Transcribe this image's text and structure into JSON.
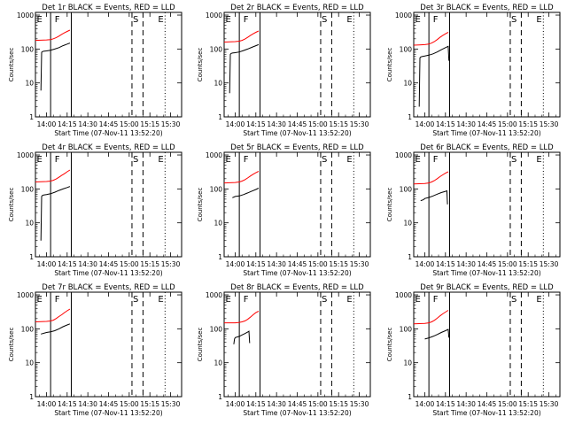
{
  "common": {
    "xlabel": "Start Time (07-Nov-11 13:52:20)",
    "ylabel": "Counts/sec",
    "x_ticks": [
      "14:00",
      "14:15",
      "14:30",
      "14:45",
      "15:00",
      "15:15",
      "15:30"
    ],
    "y_ticks": [
      "1",
      "10",
      "100",
      "1000"
    ],
    "markers": [
      "F",
      "S",
      "E"
    ]
  },
  "chart_data": [
    {
      "type": "line",
      "title": "Det 1r BLACK = Events, RED = LLD",
      "x_range_min": [
        -8,
        98
      ],
      "y_log": true,
      "ylim": [
        1,
        1200
      ],
      "marker_lines": {
        "solid_start": 3,
        "solid_end": 18,
        "dashed": [
          62,
          70
        ],
        "dotted": [
          86,
          98
        ]
      },
      "series": [
        {
          "color": "#ff0000",
          "x": [
            -8,
            -4,
            0,
            3,
            5,
            7,
            9,
            11,
            13,
            15,
            17
          ],
          "y": [
            180,
            182,
            185,
            190,
            200,
            215,
            240,
            270,
            300,
            330,
            360
          ]
        },
        {
          "color": "#000000",
          "x": [
            -4,
            -3.5,
            -3,
            -2,
            0,
            3,
            6,
            9,
            12,
            15,
            17
          ],
          "y": [
            6,
            80,
            84,
            86,
            88,
            92,
            100,
            110,
            125,
            140,
            150
          ]
        }
      ]
    },
    {
      "type": "line",
      "title": "Det 2r BLACK = Events, RED = LLD",
      "x_range_min": [
        -8,
        98
      ],
      "y_log": true,
      "ylim": [
        1,
        1200
      ],
      "marker_lines": {
        "solid_start": 3,
        "solid_end": 18,
        "dashed": [
          62,
          70
        ],
        "dotted": [
          86,
          98
        ]
      },
      "series": [
        {
          "color": "#ff0000",
          "x": [
            -8,
            -4,
            0,
            3,
            5,
            7,
            9,
            11,
            13,
            15,
            17
          ],
          "y": [
            160,
            162,
            165,
            170,
            180,
            195,
            220,
            250,
            280,
            310,
            340
          ]
        },
        {
          "color": "#000000",
          "x": [
            -4,
            -3.5,
            -3,
            -2,
            0,
            3,
            6,
            9,
            12,
            15,
            17
          ],
          "y": [
            5,
            70,
            74,
            76,
            78,
            82,
            90,
            100,
            112,
            125,
            135
          ]
        }
      ]
    },
    {
      "type": "line",
      "title": "Det 3r BLACK = Events, RED = LLD",
      "x_range_min": [
        -8,
        98
      ],
      "y_log": true,
      "ylim": [
        1,
        1200
      ],
      "marker_lines": {
        "solid_start": 3,
        "solid_end": 18,
        "dashed": [
          62,
          70
        ],
        "dotted": [
          86,
          98
        ]
      },
      "series": [
        {
          "color": "#ff0000",
          "x": [
            -8,
            -4,
            0,
            3,
            5,
            7,
            9,
            11,
            13,
            15,
            17
          ],
          "y": [
            130,
            132,
            135,
            140,
            150,
            165,
            190,
            220,
            250,
            280,
            310
          ]
        },
        {
          "color": "#000000",
          "x": [
            -4,
            -3.5,
            -3,
            -2,
            0,
            3,
            6,
            9,
            12,
            15,
            17,
            17.5
          ],
          "y": [
            2,
            55,
            58,
            60,
            62,
            66,
            72,
            82,
            95,
            110,
            120,
            45
          ]
        }
      ]
    },
    {
      "type": "line",
      "title": "Det 4r BLACK = Events, RED = LLD",
      "x_range_min": [
        -8,
        98
      ],
      "y_log": true,
      "ylim": [
        1,
        1200
      ],
      "marker_lines": {
        "solid_start": 3,
        "solid_end": 18,
        "dashed": [
          62,
          70
        ],
        "dotted": [
          86,
          98
        ]
      },
      "series": [
        {
          "color": "#ff0000",
          "x": [
            -8,
            -4,
            0,
            3,
            5,
            7,
            9,
            11,
            13,
            15,
            17
          ],
          "y": [
            160,
            162,
            165,
            170,
            180,
            195,
            220,
            250,
            280,
            320,
            360
          ]
        },
        {
          "color": "#000000",
          "x": [
            -4,
            -3.5,
            -3,
            -2,
            0,
            3,
            6,
            9,
            12,
            15,
            17
          ],
          "y": [
            3,
            60,
            64,
            66,
            68,
            72,
            80,
            90,
            100,
            110,
            118
          ]
        }
      ]
    },
    {
      "type": "line",
      "title": "Det 5r BLACK = Events, RED = LLD",
      "x_range_min": [
        -8,
        98
      ],
      "y_log": true,
      "ylim": [
        1,
        1200
      ],
      "marker_lines": {
        "solid_start": 3,
        "solid_end": 18,
        "dashed": [
          62,
          70
        ],
        "dotted": [
          86,
          98
        ]
      },
      "series": [
        {
          "color": "#ff0000",
          "x": [
            -8,
            -4,
            0,
            3,
            5,
            7,
            9,
            11,
            13,
            15,
            17
          ],
          "y": [
            150,
            152,
            155,
            160,
            170,
            185,
            210,
            240,
            270,
            300,
            330
          ]
        },
        {
          "color": "#000000",
          "x": [
            -2,
            0,
            3,
            6,
            9,
            12,
            15,
            17
          ],
          "y": [
            55,
            60,
            62,
            68,
            76,
            86,
            96,
            105
          ]
        }
      ]
    },
    {
      "type": "line",
      "title": "Det 6r BLACK = Events, RED = LLD",
      "x_range_min": [
        -8,
        98
      ],
      "y_log": true,
      "ylim": [
        1,
        1200
      ],
      "marker_lines": {
        "solid_start": 3,
        "solid_end": 18,
        "dashed": [
          62,
          70
        ],
        "dotted": [
          86,
          98
        ]
      },
      "series": [
        {
          "color": "#ff0000",
          "x": [
            -8,
            -4,
            0,
            3,
            5,
            7,
            9,
            11,
            13,
            15,
            17
          ],
          "y": [
            140,
            142,
            145,
            150,
            160,
            175,
            200,
            230,
            260,
            290,
            320
          ]
        },
        {
          "color": "#000000",
          "x": [
            -3,
            -1,
            0,
            3,
            6,
            9,
            12,
            15,
            16,
            16.5
          ],
          "y": [
            45,
            48,
            52,
            56,
            62,
            70,
            78,
            85,
            88,
            35
          ]
        }
      ]
    },
    {
      "type": "line",
      "title": "Det 7r BLACK = Events, RED = LLD",
      "x_range_min": [
        -8,
        98
      ],
      "y_log": true,
      "ylim": [
        1,
        1200
      ],
      "marker_lines": {
        "solid_start": 3,
        "solid_end": 18,
        "dashed": [
          62,
          70
        ],
        "dotted": [
          86,
          98
        ]
      },
      "series": [
        {
          "color": "#ff0000",
          "x": [
            -8,
            -4,
            0,
            3,
            5,
            7,
            9,
            11,
            13,
            15,
            17
          ],
          "y": [
            160,
            162,
            165,
            170,
            180,
            200,
            230,
            260,
            300,
            340,
            380
          ]
        },
        {
          "color": "#000000",
          "x": [
            -4,
            0,
            3,
            6,
            9,
            12,
            15,
            17
          ],
          "y": [
            70,
            78,
            82,
            88,
            100,
            115,
            130,
            140
          ]
        }
      ]
    },
    {
      "type": "line",
      "title": "Det 8r BLACK = Events, RED = LLD",
      "x_range_min": [
        -8,
        98
      ],
      "y_log": true,
      "ylim": [
        1,
        1200
      ],
      "marker_lines": {
        "solid_start": 3,
        "solid_end": 18,
        "dashed": [
          62,
          70
        ],
        "dotted": [
          86,
          98
        ]
      },
      "series": [
        {
          "color": "#ff0000",
          "x": [
            -8,
            -4,
            0,
            3,
            5,
            7,
            9,
            11,
            13,
            15,
            17
          ],
          "y": [
            150,
            150,
            150,
            155,
            160,
            170,
            190,
            220,
            260,
            300,
            330
          ]
        },
        {
          "color": "#000000",
          "x": [
            -1,
            -0.5,
            0,
            3,
            5,
            7,
            9,
            10,
            10.5
          ],
          "y": [
            35,
            50,
            55,
            60,
            66,
            72,
            80,
            85,
            38
          ]
        }
      ]
    },
    {
      "type": "line",
      "title": "Det 9r BLACK = Events, RED = LLD",
      "x_range_min": [
        -8,
        98
      ],
      "y_log": true,
      "ylim": [
        1,
        1200
      ],
      "marker_lines": {
        "solid_start": 3,
        "solid_end": 18,
        "dashed": [
          62,
          70
        ],
        "dotted": [
          86,
          98
        ]
      },
      "series": [
        {
          "color": "#ff0000",
          "x": [
            -8,
            -4,
            0,
            3,
            5,
            7,
            9,
            11,
            13,
            15,
            17
          ],
          "y": [
            140,
            142,
            145,
            150,
            160,
            178,
            205,
            240,
            275,
            310,
            350
          ]
        },
        {
          "color": "#000000",
          "x": [
            0,
            3,
            6,
            9,
            12,
            15,
            17,
            17.5
          ],
          "y": [
            50,
            54,
            60,
            68,
            78,
            88,
            96,
            55
          ]
        }
      ]
    }
  ]
}
